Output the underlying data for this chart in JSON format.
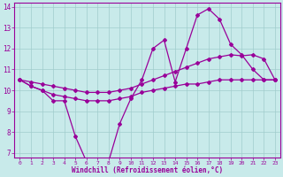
{
  "line1_y": [
    10.5,
    10.2,
    10.0,
    9.5,
    9.5,
    7.8,
    6.6,
    6.6,
    6.6,
    8.4,
    9.6,
    10.5,
    12.0,
    12.4,
    10.4,
    12.0,
    13.6,
    13.9,
    13.4,
    12.2,
    11.7,
    11.0,
    10.5,
    10.5
  ],
  "line2_y": [
    10.5,
    10.4,
    10.3,
    10.2,
    10.1,
    10.0,
    9.9,
    9.9,
    9.9,
    10.0,
    10.1,
    10.3,
    10.5,
    10.7,
    10.9,
    11.1,
    11.3,
    11.5,
    11.6,
    11.7,
    11.65,
    11.7,
    11.5,
    10.5
  ],
  "line3_y": [
    10.5,
    10.2,
    10.0,
    9.8,
    9.7,
    9.6,
    9.5,
    9.5,
    9.5,
    9.6,
    9.7,
    9.9,
    10.0,
    10.1,
    10.2,
    10.3,
    10.3,
    10.4,
    10.5,
    10.5,
    10.5,
    10.5,
    10.5,
    10.5
  ],
  "x": [
    0,
    1,
    2,
    3,
    4,
    5,
    6,
    7,
    8,
    9,
    10,
    11,
    12,
    13,
    14,
    15,
    16,
    17,
    18,
    19,
    20,
    21,
    22,
    23
  ],
  "line_color": "#990099",
  "bg_color": "#c8eaea",
  "grid_color": "#a0cccc",
  "xlabel": "Windchill (Refroidissement éolien,°C)",
  "ylim": [
    6.8,
    14.2
  ],
  "xlim": [
    -0.5,
    23.5
  ],
  "yticks": [
    7,
    8,
    9,
    10,
    11,
    12,
    13,
    14
  ],
  "xticks": [
    0,
    1,
    2,
    3,
    4,
    5,
    6,
    7,
    8,
    9,
    10,
    11,
    12,
    13,
    14,
    15,
    16,
    17,
    18,
    19,
    20,
    21,
    22,
    23
  ]
}
